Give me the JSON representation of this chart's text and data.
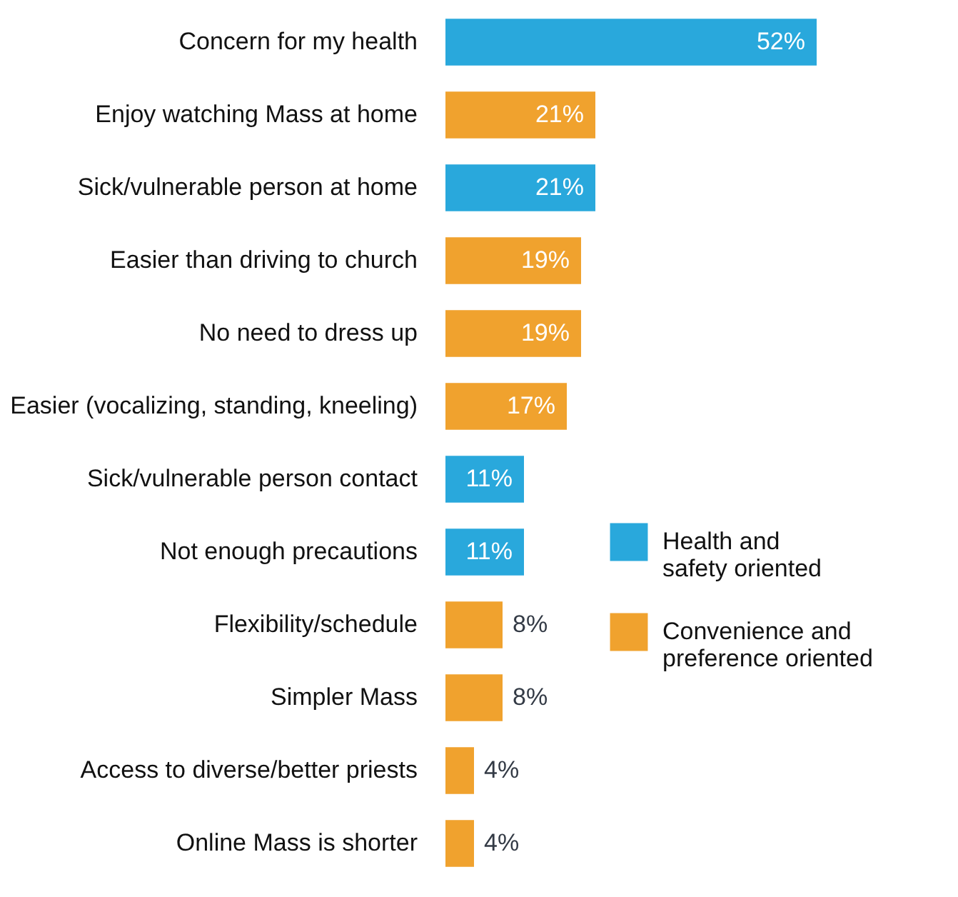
{
  "chart_data": {
    "type": "bar",
    "orientation": "horizontal",
    "categories": [
      "Concern for my health",
      "Enjoy watching Mass at home",
      "Sick/vulnerable person at home",
      "Easier than driving to church",
      "No need to dress up",
      "Easier (vocalizing, standing, kneeling)",
      "Sick/vulnerable person contact",
      "Not enough precautions",
      "Flexibility/schedule",
      "Simpler Mass",
      "Access to diverse/better priests",
      "Online Mass is shorter"
    ],
    "series": [
      {
        "name": "Health and safety oriented",
        "color": "#29a8dc",
        "values": [
          52,
          null,
          21,
          null,
          null,
          null,
          11,
          11,
          null,
          null,
          null,
          null
        ],
        "value_labels": [
          "52%",
          null,
          "21%",
          null,
          null,
          null,
          "11%",
          "11%",
          null,
          null,
          null,
          null
        ]
      },
      {
        "name": "Convenience and preference oriented",
        "color": "#f0a22e",
        "values": [
          null,
          21,
          null,
          19,
          19,
          17,
          null,
          null,
          8,
          8,
          4,
          4
        ],
        "value_labels": [
          null,
          "21%",
          null,
          "19%",
          "19%",
          "17%",
          null,
          null,
          "8%",
          "8%",
          "4%",
          "4%"
        ]
      }
    ],
    "xlim": [
      0,
      63
    ],
    "tick_labels": "y",
    "grid": false,
    "legend": "bottom right"
  }
}
